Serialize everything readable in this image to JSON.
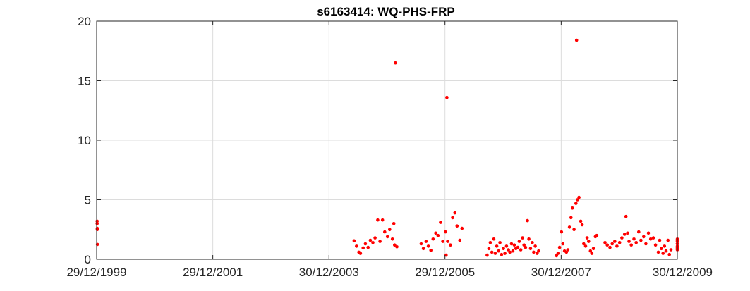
{
  "chart_data": {
    "type": "scatter",
    "title": "s6163414: WQ-PHS-FRP",
    "xlabel": "",
    "ylabel": "",
    "grid": true,
    "legend": "none",
    "marker_color": "#ff0000",
    "ylim": [
      0,
      20
    ],
    "xlim": [
      "1999-12-29",
      "2009-12-30"
    ],
    "x_ticks": [
      {
        "date": "1999-12-29",
        "label": "29/12/1999"
      },
      {
        "date": "2001-12-29",
        "label": "29/12/2001"
      },
      {
        "date": "2003-12-30",
        "label": "30/12/2003"
      },
      {
        "date": "2005-12-29",
        "label": "29/12/2005"
      },
      {
        "date": "2007-12-30",
        "label": "30/12/2007"
      },
      {
        "date": "2009-12-30",
        "label": "30/12/2009"
      }
    ],
    "y_ticks": [
      0,
      5,
      10,
      15,
      20
    ],
    "series": [
      {
        "points": [
          [
            "2000-01-01",
            3.2
          ],
          [
            "2000-01-01",
            3.0
          ],
          [
            "2000-01-02",
            2.6
          ],
          [
            "2000-01-02",
            2.5
          ],
          [
            "2000-01-03",
            1.25
          ],
          [
            "2004-06-05",
            1.55
          ],
          [
            "2004-06-20",
            1.1
          ],
          [
            "2004-07-05",
            0.6
          ],
          [
            "2004-07-15",
            0.5
          ],
          [
            "2004-08-01",
            0.95
          ],
          [
            "2004-08-15",
            1.3
          ],
          [
            "2004-09-01",
            1.0
          ],
          [
            "2004-09-15",
            1.6
          ],
          [
            "2004-10-01",
            1.4
          ],
          [
            "2004-10-15",
            1.8
          ],
          [
            "2004-11-01",
            3.3
          ],
          [
            "2004-11-15",
            1.5
          ],
          [
            "2004-12-01",
            3.3
          ],
          [
            "2004-12-15",
            2.3
          ],
          [
            "2005-01-01",
            1.9
          ],
          [
            "2005-01-15",
            2.5
          ],
          [
            "2005-02-01",
            1.7
          ],
          [
            "2005-02-10",
            3.0
          ],
          [
            "2005-02-15",
            1.2
          ],
          [
            "2005-03-01",
            1.05
          ],
          [
            "2005-02-20",
            16.5
          ],
          [
            "2005-08-01",
            1.3
          ],
          [
            "2005-08-15",
            0.9
          ],
          [
            "2005-09-01",
            1.5
          ],
          [
            "2005-09-15",
            1.1
          ],
          [
            "2005-10-01",
            0.75
          ],
          [
            "2005-10-15",
            1.7
          ],
          [
            "2005-11-01",
            2.2
          ],
          [
            "2005-11-15",
            2.0
          ],
          [
            "2005-12-01",
            3.1
          ],
          [
            "2005-12-15",
            1.5
          ],
          [
            "2006-01-01",
            2.3
          ],
          [
            "2006-01-15",
            1.5
          ],
          [
            "2006-02-01",
            1.2
          ],
          [
            "2006-02-15",
            3.5
          ],
          [
            "2006-03-01",
            3.9
          ],
          [
            "2006-03-15",
            2.8
          ],
          [
            "2006-04-01",
            1.6
          ],
          [
            "2006-04-15",
            2.6
          ],
          [
            "2006-01-05",
            0.35
          ],
          [
            "2006-01-10",
            13.6
          ],
          [
            "2006-09-20",
            0.35
          ],
          [
            "2006-10-01",
            0.9
          ],
          [
            "2006-10-10",
            1.4
          ],
          [
            "2006-10-20",
            0.6
          ],
          [
            "2006-11-01",
            1.7
          ],
          [
            "2006-11-10",
            0.5
          ],
          [
            "2006-11-20",
            1.1
          ],
          [
            "2006-12-01",
            0.7
          ],
          [
            "2006-12-10",
            1.4
          ],
          [
            "2006-12-20",
            0.4
          ],
          [
            "2007-01-01",
            0.9
          ],
          [
            "2007-01-10",
            0.5
          ],
          [
            "2007-01-20",
            1.1
          ],
          [
            "2007-02-01",
            0.8
          ],
          [
            "2007-02-10",
            0.6
          ],
          [
            "2007-02-20",
            1.3
          ],
          [
            "2007-03-01",
            0.7
          ],
          [
            "2007-03-10",
            1.2
          ],
          [
            "2007-03-20",
            0.9
          ],
          [
            "2007-04-01",
            1.0
          ],
          [
            "2007-04-10",
            1.5
          ],
          [
            "2007-04-20",
            0.8
          ],
          [
            "2007-05-01",
            1.8
          ],
          [
            "2007-05-10",
            1.2
          ],
          [
            "2007-05-20",
            1.0
          ],
          [
            "2007-06-01",
            3.25
          ],
          [
            "2007-06-10",
            1.7
          ],
          [
            "2007-06-20",
            0.9
          ],
          [
            "2007-07-01",
            1.4
          ],
          [
            "2007-07-10",
            0.6
          ],
          [
            "2007-07-20",
            1.1
          ],
          [
            "2007-08-01",
            0.5
          ],
          [
            "2007-08-10",
            0.7
          ],
          [
            "2007-12-01",
            0.3
          ],
          [
            "2007-12-10",
            0.5
          ],
          [
            "2007-12-20",
            1.0
          ],
          [
            "2008-01-01",
            2.3
          ],
          [
            "2008-01-10",
            1.3
          ],
          [
            "2008-01-20",
            0.7
          ],
          [
            "2008-02-01",
            0.6
          ],
          [
            "2008-02-10",
            0.8
          ],
          [
            "2008-02-20",
            2.7
          ],
          [
            "2008-03-01",
            3.5
          ],
          [
            "2008-03-10",
            4.3
          ],
          [
            "2008-03-20",
            2.5
          ],
          [
            "2008-04-01",
            4.7
          ],
          [
            "2008-04-10",
            5.0
          ],
          [
            "2008-04-20",
            5.2
          ],
          [
            "2008-05-01",
            3.2
          ],
          [
            "2008-05-10",
            2.9
          ],
          [
            "2008-05-20",
            1.3
          ],
          [
            "2008-06-01",
            1.1
          ],
          [
            "2008-06-10",
            1.8
          ],
          [
            "2008-06-20",
            1.5
          ],
          [
            "2008-07-01",
            0.7
          ],
          [
            "2008-07-10",
            0.5
          ],
          [
            "2008-07-20",
            0.9
          ],
          [
            "2008-08-01",
            1.9
          ],
          [
            "2008-08-10",
            2.0
          ],
          [
            "2008-04-05",
            18.4
          ],
          [
            "2008-10-01",
            1.4
          ],
          [
            "2008-10-15",
            1.2
          ],
          [
            "2008-11-01",
            1.0
          ],
          [
            "2008-11-15",
            1.3
          ],
          [
            "2008-12-01",
            1.5
          ],
          [
            "2008-12-15",
            1.1
          ],
          [
            "2009-01-01",
            1.4
          ],
          [
            "2009-01-15",
            1.8
          ],
          [
            "2009-02-01",
            2.1
          ],
          [
            "2009-02-10",
            3.6
          ],
          [
            "2009-02-20",
            2.2
          ],
          [
            "2009-03-01",
            1.5
          ],
          [
            "2009-03-15",
            1.2
          ],
          [
            "2009-04-01",
            1.7
          ],
          [
            "2009-04-15",
            1.4
          ],
          [
            "2009-05-01",
            2.3
          ],
          [
            "2009-05-15",
            1.6
          ],
          [
            "2009-06-01",
            1.9
          ],
          [
            "2009-06-15",
            1.3
          ],
          [
            "2009-07-01",
            2.2
          ],
          [
            "2009-07-15",
            1.7
          ],
          [
            "2009-08-01",
            1.8
          ],
          [
            "2009-08-15",
            1.2
          ],
          [
            "2009-09-01",
            0.6
          ],
          [
            "2009-09-10",
            1.6
          ],
          [
            "2009-09-20",
            0.9
          ],
          [
            "2009-10-01",
            0.5
          ],
          [
            "2009-10-10",
            1.1
          ],
          [
            "2009-10-20",
            0.7
          ],
          [
            "2009-11-01",
            1.6
          ],
          [
            "2009-11-10",
            0.4
          ],
          [
            "2009-11-20",
            0.8
          ],
          [
            "2010-02-01",
            0.8
          ],
          [
            "2010-02-10",
            1.3
          ],
          [
            "2010-02-20",
            1.0
          ],
          [
            "2010-03-01",
            1.5
          ],
          [
            "2010-03-10",
            0.9
          ],
          [
            "2010-03-20",
            1.6
          ],
          [
            "2010-04-01",
            1.1
          ],
          [
            "2010-04-10",
            1.7
          ],
          [
            "2010-04-20",
            1.3
          ]
        ]
      }
    ]
  }
}
